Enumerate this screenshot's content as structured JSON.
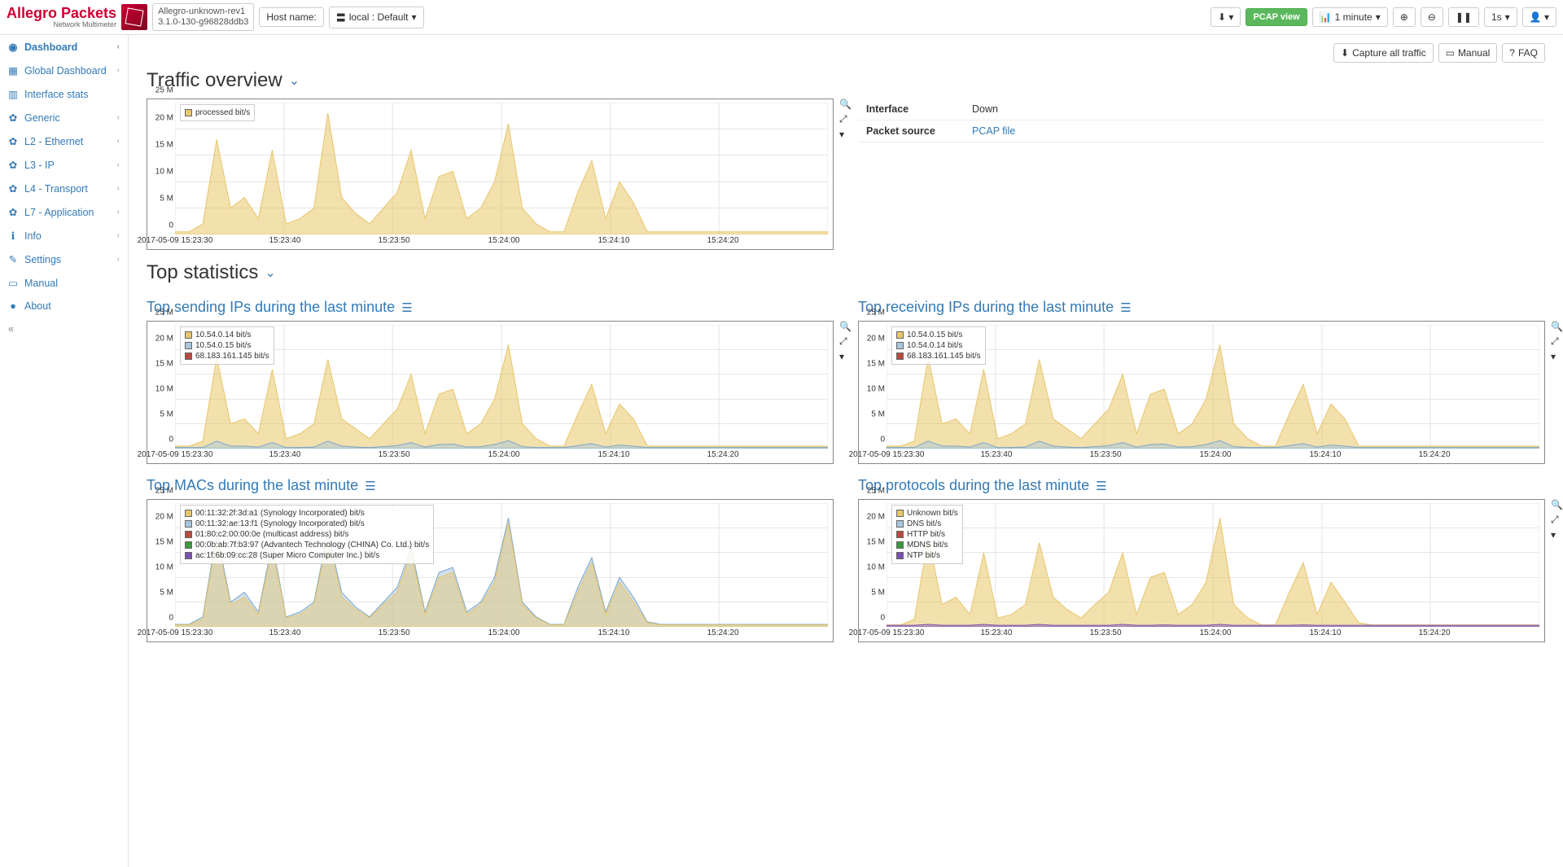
{
  "brand": {
    "name": "Allegro Packets",
    "sub": "Network Multimeter"
  },
  "version": {
    "line1": "Allegro-unknown-rev1",
    "line2": "3.1.0-130-g96828ddb3"
  },
  "hostname_label": "Host name:",
  "local_selector": "local : Default",
  "pcap_view": "PCAP view",
  "time_range": "1 minute",
  "refresh": "1s",
  "sidebar": [
    {
      "icon": "◉",
      "label": "Dashboard",
      "chev": true,
      "active": true
    },
    {
      "icon": "▦",
      "label": "Global Dashboard",
      "chev": true
    },
    {
      "icon": "▥",
      "label": "Interface stats"
    },
    {
      "icon": "✿",
      "label": "Generic",
      "chev": true
    },
    {
      "icon": "✿",
      "label": "L2 - Ethernet",
      "chev": true
    },
    {
      "icon": "✿",
      "label": "L3 - IP",
      "chev": true
    },
    {
      "icon": "✿",
      "label": "L4 - Transport",
      "chev": true
    },
    {
      "icon": "✿",
      "label": "L7 - Application",
      "chev": true
    },
    {
      "icon": "ℹ",
      "label": "Info",
      "chev": true
    },
    {
      "icon": "✎",
      "label": "Settings",
      "chev": true
    },
    {
      "icon": "▭",
      "label": "Manual"
    },
    {
      "icon": "●",
      "label": "About"
    }
  ],
  "btn_capture": "Capture all traffic",
  "btn_manual": "Manual",
  "btn_faq": "FAQ",
  "heading_traffic": "Traffic overview",
  "heading_topstats": "Top statistics",
  "info": [
    {
      "k": "Interface",
      "v": "Down"
    },
    {
      "k": "Packet source",
      "v": "PCAP file",
      "link": true
    }
  ],
  "charts_common": {
    "ytick_labels": [
      "0",
      "5 M",
      "10 M",
      "15 M",
      "20 M",
      "25 M"
    ],
    "ytick_vals": [
      0,
      5,
      10,
      15,
      20,
      25
    ],
    "ymax": 25,
    "xtick_labels": [
      "2017-05-09 15:23:30",
      "15:23:40",
      "15:23:50",
      "15:24:00",
      "15:24:10",
      "15:24:20"
    ],
    "xtick_pos": [
      0,
      0.167,
      0.333,
      0.5,
      0.667,
      0.833
    ],
    "grid_x": [
      0,
      0.167,
      0.333,
      0.5,
      0.667,
      0.833,
      1
    ],
    "height": 170,
    "height_small": 165
  },
  "chart_traffic": {
    "legend": [
      {
        "c": "#e8c66a",
        "t": "processed bit/s"
      }
    ],
    "series": [
      {
        "color": "#e8c66a",
        "fill": "rgba(232,198,106,0.55)",
        "data": [
          0.5,
          0.5,
          2,
          18,
          5,
          7,
          3,
          16,
          2,
          3,
          5,
          23,
          7,
          4,
          2,
          5,
          8,
          16,
          3,
          11,
          12,
          3,
          5,
          10,
          21,
          5,
          2,
          0.5,
          0.5,
          8,
          14,
          3,
          10,
          6,
          0.5,
          0.5,
          0.5,
          0.5,
          0.5,
          0.5,
          0.5,
          0.5,
          0.5,
          0.5,
          0.5,
          0.5,
          0.5,
          0.5
        ]
      }
    ]
  },
  "sub_send": {
    "title": "Top sending IPs during the last minute",
    "legend": [
      {
        "c": "#e8c66a",
        "t": "10.54.0.14 bit/s"
      },
      {
        "c": "#a7c7e0",
        "t": "10.54.0.15 bit/s"
      },
      {
        "c": "#b94a3d",
        "t": "68.183.161.145 bit/s"
      }
    ],
    "series": [
      {
        "color": "#e8c66a",
        "fill": "rgba(232,198,106,0.55)",
        "data": [
          0.5,
          0.5,
          1.5,
          18.5,
          5,
          6,
          3,
          16,
          2,
          3,
          5,
          18,
          6,
          4,
          2,
          5,
          8,
          15,
          3,
          11,
          12,
          3,
          5,
          10,
          21,
          5,
          2,
          0.5,
          0.5,
          7,
          13,
          3,
          9,
          6,
          0.5,
          0.5,
          0.5,
          0.5,
          0.5,
          0.5,
          0.5,
          0.5,
          0.5,
          0.5,
          0.5,
          0.5,
          0.5,
          0.5
        ]
      },
      {
        "color": "#7ba6c9",
        "fill": "rgba(167,199,224,0.5)",
        "data": [
          0.2,
          0.2,
          0.2,
          1.5,
          0.5,
          0.5,
          0.3,
          1.2,
          0.2,
          0.2,
          0.3,
          1.5,
          0.5,
          0.3,
          0.2,
          0.4,
          0.6,
          1.2,
          0.3,
          0.8,
          0.9,
          0.3,
          0.4,
          0.8,
          1.6,
          0.4,
          0.2,
          0.2,
          0.2,
          0.6,
          1,
          0.3,
          0.7,
          0.5,
          0.2,
          0.2,
          0.2,
          0.2,
          0.2,
          0.2,
          0.2,
          0.2,
          0.2,
          0.2,
          0.2,
          0.2,
          0.2,
          0.2
        ]
      }
    ]
  },
  "sub_recv": {
    "title": "Top receiving IPs during the last minute",
    "legend": [
      {
        "c": "#e8c66a",
        "t": "10.54.0.15 bit/s"
      },
      {
        "c": "#a7c7e0",
        "t": "10.54.0.14 bit/s"
      },
      {
        "c": "#b94a3d",
        "t": "68.183.161.145 bit/s"
      }
    ],
    "series": [
      {
        "color": "#e8c66a",
        "fill": "rgba(232,198,106,0.55)",
        "data": [
          0.5,
          0.5,
          1.5,
          18.5,
          5,
          6,
          3,
          16,
          2,
          3,
          5,
          18,
          6,
          4,
          2,
          5,
          8,
          15,
          3,
          11,
          12,
          3,
          5,
          10,
          21,
          5,
          2,
          0.5,
          0.5,
          7,
          13,
          3,
          9,
          6,
          0.5,
          0.5,
          0.5,
          0.5,
          0.5,
          0.5,
          0.5,
          0.5,
          0.5,
          0.5,
          0.5,
          0.5,
          0.5,
          0.5
        ]
      },
      {
        "color": "#7ba6c9",
        "fill": "rgba(167,199,224,0.5)",
        "data": [
          0.2,
          0.2,
          0.2,
          1.5,
          0.5,
          0.5,
          0.3,
          1.2,
          0.2,
          0.2,
          0.3,
          1.5,
          0.5,
          0.3,
          0.2,
          0.4,
          0.6,
          1.2,
          0.3,
          0.8,
          0.9,
          0.3,
          0.4,
          0.8,
          1.6,
          0.4,
          0.2,
          0.2,
          0.2,
          0.6,
          1,
          0.3,
          0.7,
          0.5,
          0.2,
          0.2,
          0.2,
          0.2,
          0.2,
          0.2,
          0.2,
          0.2,
          0.2,
          0.2,
          0.2,
          0.2,
          0.2,
          0.2
        ]
      }
    ]
  },
  "sub_mac": {
    "title": "Top MACs during the last minute",
    "legend": [
      {
        "c": "#e8c66a",
        "t": "00:11:32:2f:3d:a1 (Synology Incorporated) bit/s"
      },
      {
        "c": "#a7c7e0",
        "t": "00:11:32:ae:13:f1 (Synology Incorporated) bit/s"
      },
      {
        "c": "#b94a3d",
        "t": "01:80:c2:00:00:0e (multicast address) bit/s"
      },
      {
        "c": "#3a9b3a",
        "t": "00:0b:ab:7f:b3:97 (Advantech Technology (CHINA) Co. Ltd.) bit/s"
      },
      {
        "c": "#7a4fb0",
        "t": "ac:1f:6b:09:cc:28 (Super Micro Computer Inc.) bit/s"
      }
    ],
    "series": [
      {
        "color": "#7ba6c9",
        "fill": "rgba(167,199,224,0.55)",
        "data": [
          0.5,
          0.5,
          2,
          19,
          5,
          7,
          3,
          17,
          2,
          3,
          5,
          19,
          7,
          4,
          2,
          5,
          8,
          16,
          3,
          11,
          12,
          3,
          5,
          10,
          22,
          5,
          2,
          0.5,
          0.5,
          8,
          14,
          3,
          10,
          6,
          1,
          0.5,
          0.5,
          0.5,
          0.5,
          0.5,
          0.5,
          0.5,
          0.5,
          0.5,
          0.5,
          0.5,
          0.5,
          0.5
        ]
      },
      {
        "color": "#e8c66a",
        "fill": "rgba(232,198,106,0.45)",
        "data": [
          0.4,
          0.4,
          1.5,
          18,
          4.5,
          6,
          2.5,
          16,
          1.8,
          2.5,
          4.5,
          18,
          6,
          3.5,
          1.8,
          4.5,
          7,
          15,
          2.5,
          10,
          11,
          2.5,
          4.5,
          9,
          21,
          4.5,
          1.8,
          0.4,
          0.4,
          7,
          13,
          2.5,
          9,
          5,
          0.8,
          0.4,
          0.4,
          0.4,
          0.4,
          0.4,
          0.4,
          0.4,
          0.4,
          0.4,
          0.4,
          0.4,
          0.4,
          0.4
        ]
      }
    ]
  },
  "sub_proto": {
    "title": "Top protocols during the last minute",
    "legend": [
      {
        "c": "#e8c66a",
        "t": "Unknown bit/s"
      },
      {
        "c": "#a7c7e0",
        "t": "DNS bit/s"
      },
      {
        "c": "#b94a3d",
        "t": "HTTP bit/s"
      },
      {
        "c": "#3a9b3a",
        "t": "MDNS bit/s"
      },
      {
        "c": "#7a4fb0",
        "t": "NTP bit/s"
      }
    ],
    "series": [
      {
        "color": "#e8c66a",
        "fill": "rgba(232,198,106,0.55)",
        "data": [
          0.4,
          0.4,
          1.5,
          18,
          4.5,
          6,
          2.5,
          15,
          1.8,
          2.5,
          4.5,
          17,
          6,
          3.5,
          1.8,
          4.5,
          7,
          15,
          2.5,
          10,
          11,
          2.5,
          4.5,
          9,
          22,
          4.5,
          1.8,
          0.4,
          0.4,
          7,
          13,
          2.5,
          9,
          5,
          0.8,
          0.4,
          0.4,
          0.4,
          0.4,
          0.4,
          0.4,
          0.4,
          0.4,
          0.4,
          0.4,
          0.4,
          0.4,
          0.4
        ]
      },
      {
        "color": "#7a4fb0",
        "fill": "rgba(122,79,176,0.4)",
        "data": [
          0.3,
          0.3,
          0.3,
          0.5,
          0.3,
          0.3,
          0.3,
          0.5,
          0.3,
          0.3,
          0.3,
          0.5,
          0.3,
          0.3,
          0.3,
          0.3,
          0.3,
          0.5,
          0.3,
          0.3,
          0.4,
          0.3,
          0.3,
          0.3,
          0.5,
          0.3,
          0.3,
          0.3,
          0.3,
          0.3,
          0.4,
          0.3,
          0.3,
          0.3,
          0.3,
          0.3,
          0.3,
          0.3,
          0.3,
          0.3,
          0.3,
          0.3,
          0.3,
          0.3,
          0.3,
          0.3,
          0.3,
          0.3
        ]
      }
    ]
  }
}
